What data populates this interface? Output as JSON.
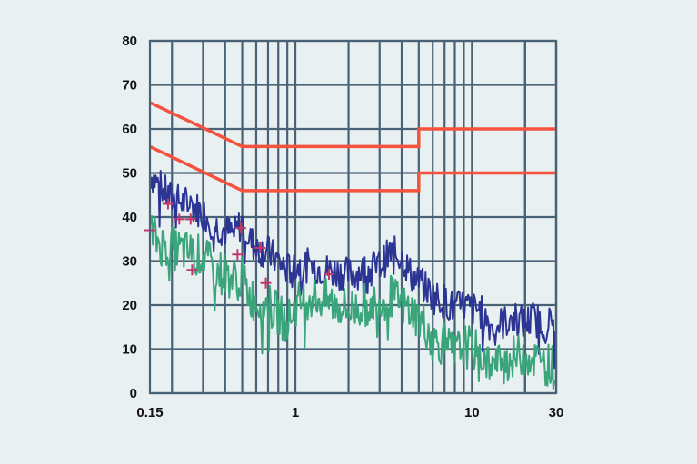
{
  "chart_data": {
    "type": "line",
    "xscale": "log",
    "xlim": [
      0.15,
      30
    ],
    "ylim": [
      0,
      80
    ],
    "grid": true,
    "xticks": [
      {
        "value": 0.15,
        "label": "0.15"
      },
      {
        "value": 1,
        "label": "1"
      },
      {
        "value": 10,
        "label": "10"
      },
      {
        "value": 30,
        "label": "30"
      }
    ],
    "yticks": [
      {
        "value": 0,
        "label": "0"
      },
      {
        "value": 10,
        "label": "10"
      },
      {
        "value": 20,
        "label": "20"
      },
      {
        "value": 30,
        "label": "30"
      },
      {
        "value": 40,
        "label": "40"
      },
      {
        "value": 50,
        "label": "50"
      },
      {
        "value": 60,
        "label": "60"
      },
      {
        "value": 70,
        "label": "70"
      },
      {
        "value": 80,
        "label": "80"
      }
    ],
    "colors": {
      "limit": "#f4523e",
      "series_upper": "#2c3594",
      "series_lower": "#3aa57a",
      "markers": "#c2366a",
      "grid": "#4a6276"
    },
    "series": [
      {
        "role": "limit-upper",
        "color": "#f4523e",
        "x": [
          0.15,
          0.5,
          0.5,
          5,
          5,
          30
        ],
        "y": [
          66,
          56,
          56,
          56,
          60,
          60
        ]
      },
      {
        "role": "limit-lower",
        "color": "#f4523e",
        "x": [
          0.15,
          0.5,
          0.5,
          5,
          5,
          30
        ],
        "y": [
          56,
          46,
          46,
          46,
          50,
          50
        ]
      },
      {
        "role": "measurement-upper",
        "color": "#2c3594",
        "x": [
          0.15,
          0.17,
          0.2,
          0.25,
          0.3,
          0.35,
          0.4,
          0.45,
          0.5,
          0.55,
          0.6,
          0.7,
          0.8,
          0.9,
          1.0,
          1.2,
          1.5,
          2.0,
          2.5,
          3.0,
          3.5,
          4.0,
          4.5,
          5.0,
          5.5,
          6.0,
          7.0,
          8.0,
          9.0,
          10.0,
          11.0,
          12.0,
          13.0,
          15.0,
          17.0,
          20.0,
          22.0,
          25.0,
          30.0
        ],
        "y": [
          50,
          47,
          44,
          43,
          41,
          38,
          37,
          36,
          39,
          35,
          33,
          32,
          30,
          28,
          29,
          29,
          28,
          27,
          28,
          29,
          32,
          31,
          27,
          25,
          24,
          22,
          21,
          19,
          20,
          19,
          19,
          17,
          15,
          16,
          17,
          16,
          17,
          16,
          16
        ]
      },
      {
        "role": "measurement-lower",
        "color": "#3aa57a",
        "x": [
          0.15,
          0.17,
          0.2,
          0.25,
          0.3,
          0.35,
          0.4,
          0.45,
          0.5,
          0.55,
          0.6,
          0.7,
          0.8,
          0.9,
          1.0,
          1.2,
          1.5,
          2.0,
          2.5,
          3.0,
          3.5,
          4.0,
          4.5,
          5.0,
          5.5,
          6.0,
          7.0,
          8.0,
          9.0,
          10.0,
          11.0,
          12.0,
          13.0,
          15.0,
          17.0,
          20.0,
          22.0,
          25.0,
          30.0
        ],
        "y": [
          37,
          34,
          33,
          32,
          31,
          28,
          27,
          26,
          26,
          22,
          21,
          20,
          18,
          16,
          20,
          22,
          21,
          19,
          20,
          21,
          22,
          20,
          19,
          17,
          15,
          12,
          11,
          9,
          11,
          10,
          9,
          8,
          6,
          7,
          8,
          9,
          8,
          7,
          6
        ]
      }
    ],
    "markers": {
      "symbol": "+",
      "color": "#c2366a",
      "points": [
        {
          "x": 0.15,
          "y": 37
        },
        {
          "x": 0.19,
          "y": 43
        },
        {
          "x": 0.22,
          "y": 39.5
        },
        {
          "x": 0.255,
          "y": 39.5
        },
        {
          "x": 0.26,
          "y": 28
        },
        {
          "x": 0.47,
          "y": 31.5
        },
        {
          "x": 0.49,
          "y": 37.5
        },
        {
          "x": 0.63,
          "y": 33
        },
        {
          "x": 0.68,
          "y": 25
        },
        {
          "x": 1.55,
          "y": 27
        }
      ]
    }
  }
}
